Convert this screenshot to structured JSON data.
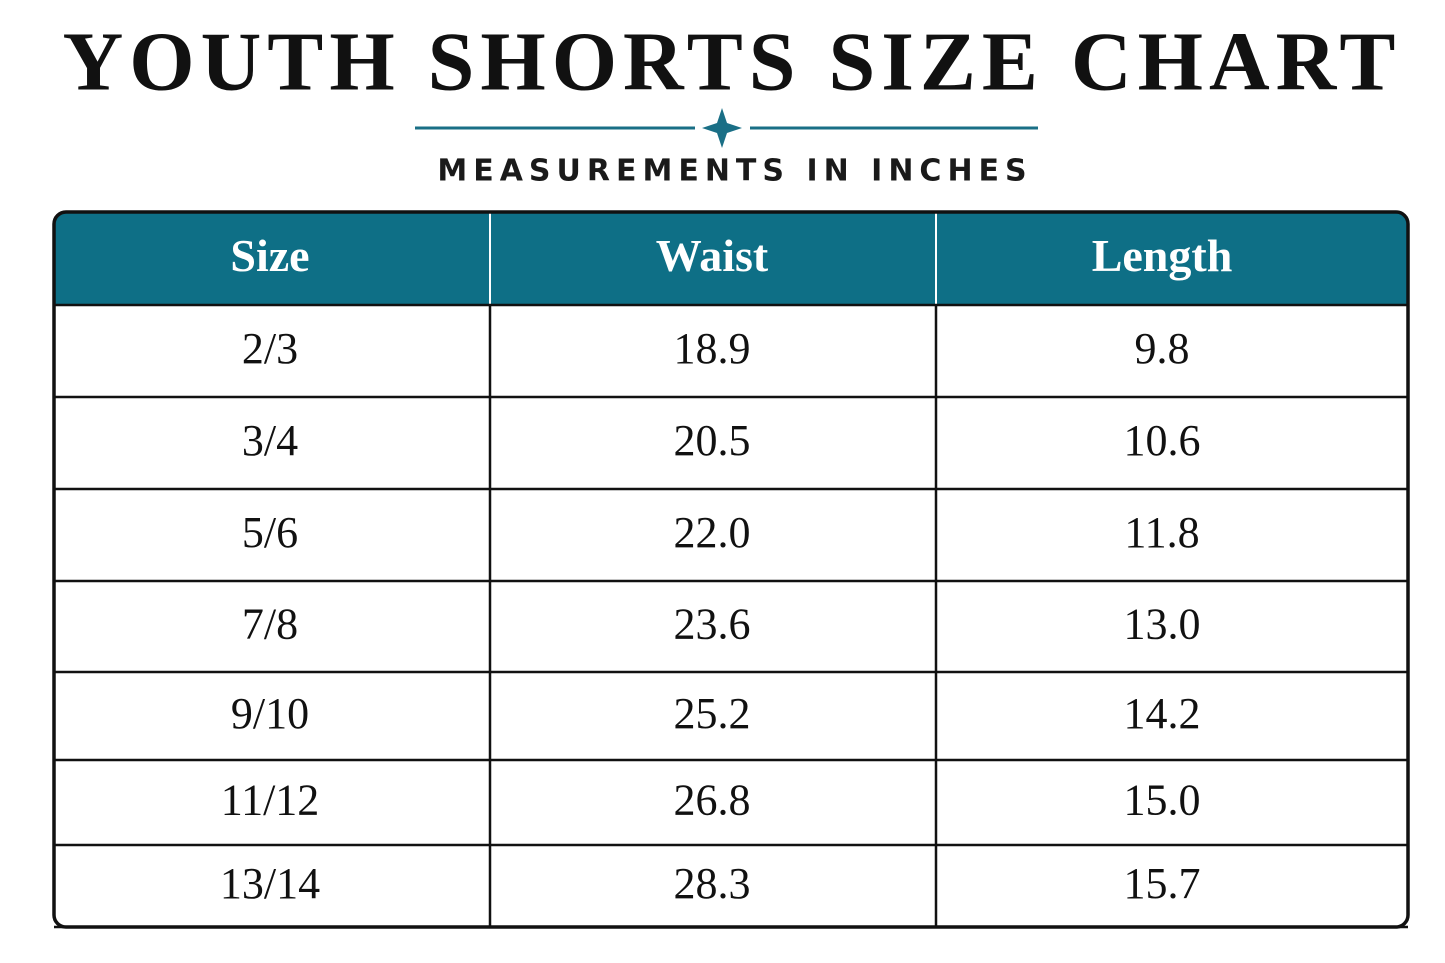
{
  "header": {
    "title": "YOUTH SHORTS SIZE CHART",
    "subtitle": "MEASUREMENTS IN INCHES"
  },
  "table": {
    "columns": [
      "Size",
      "Waist",
      "Length"
    ],
    "rows": [
      [
        "2/3",
        "18.9",
        "9.8"
      ],
      [
        "3/4",
        "20.5",
        "10.6"
      ],
      [
        "5/6",
        "22.0",
        "11.8"
      ],
      [
        "7/8",
        "23.6",
        "13.0"
      ],
      [
        "9/10",
        "25.2",
        "14.2"
      ],
      [
        "11/12",
        "26.8",
        "15.0"
      ],
      [
        "13/14",
        "28.3",
        "15.7"
      ]
    ]
  }
}
